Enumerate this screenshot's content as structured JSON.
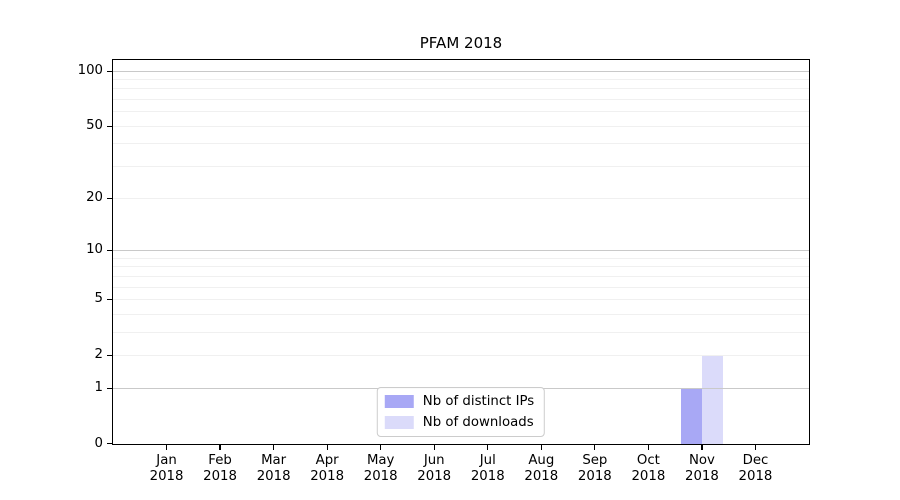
{
  "page": {
    "background": "#ffffff"
  },
  "chart_data": {
    "type": "bar",
    "title": "PFAM 2018",
    "categories": [
      "Jan",
      "Feb",
      "Mar",
      "Apr",
      "May",
      "Jun",
      "Jul",
      "Aug",
      "Sep",
      "Oct",
      "Nov",
      "Dec"
    ],
    "category_year": "2018",
    "series": [
      {
        "name": "Nb of distinct IPs",
        "color": "#a8a8f5",
        "values": [
          0,
          0,
          0,
          0,
          0,
          0,
          0,
          0,
          0,
          0,
          1,
          0
        ]
      },
      {
        "name": "Nb of downloads",
        "color": "#dbdbfa",
        "values": [
          0,
          0,
          0,
          0,
          0,
          0,
          0,
          0,
          0,
          0,
          2,
          0
        ]
      }
    ],
    "y_axis": {
      "scale": "log1p",
      "tick_labels": [
        0,
        1,
        2,
        5,
        10,
        20,
        50,
        100
      ],
      "major_gridlines": [
        1,
        10,
        100
      ],
      "minor_gridlines": [
        2,
        3,
        4,
        5,
        6,
        7,
        8,
        9,
        20,
        30,
        40,
        50,
        60,
        70,
        80,
        90
      ],
      "ylim": [
        0,
        114
      ]
    },
    "x_axis": {
      "slots": 13
    },
    "bar_width_fraction": 0.4,
    "legend": {
      "position": "lower center"
    },
    "grid": true
  },
  "style": {
    "major_grid_color": "#c9c9c9",
    "minor_grid_color": "#f0f0f0",
    "axis_color": "#000000",
    "text_color": "#000000",
    "legend_border_color": "#cccccc"
  }
}
